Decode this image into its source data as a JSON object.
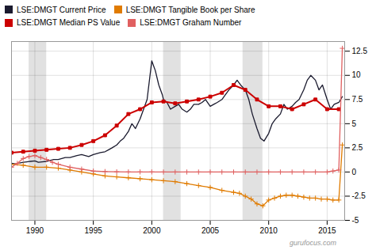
{
  "chart_data": {
    "type": "line",
    "xlim": [
      1988.0,
      2016.5
    ],
    "ylim": [
      -5,
      13.5
    ],
    "xticks": [
      1990,
      1995,
      2000,
      2005,
      2010,
      2015
    ],
    "yticks": [
      -5,
      -2.5,
      0,
      2.5,
      5,
      7.5,
      10,
      12.5
    ],
    "grid": true,
    "legend": "upper left",
    "caption": "gurufocus.com",
    "recession_bands": [
      [
        1989.5,
        1991.0
      ],
      [
        2001.0,
        2002.5
      ],
      [
        2007.8,
        2009.5
      ]
    ],
    "series": [
      {
        "name": "LSE:DMGT Current Price",
        "color": "#1a1a2e",
        "x": [
          1988.0,
          1988.3,
          1988.6,
          1989.0,
          1989.3,
          1989.6,
          1990.0,
          1990.3,
          1990.6,
          1991.0,
          1991.3,
          1991.6,
          1992.0,
          1992.3,
          1992.6,
          1993.0,
          1993.3,
          1993.6,
          1994.0,
          1994.3,
          1994.6,
          1995.0,
          1995.3,
          1995.6,
          1996.0,
          1996.3,
          1996.6,
          1997.0,
          1997.3,
          1997.6,
          1998.0,
          1998.3,
          1998.6,
          1999.0,
          1999.3,
          1999.6,
          2000.0,
          2000.3,
          2000.6,
          2000.9,
          2001.0,
          2001.3,
          2001.6,
          2002.0,
          2002.3,
          2002.6,
          2003.0,
          2003.3,
          2003.6,
          2004.0,
          2004.3,
          2004.6,
          2005.0,
          2005.3,
          2005.6,
          2006.0,
          2006.3,
          2006.6,
          2007.0,
          2007.3,
          2007.6,
          2008.0,
          2008.3,
          2008.6,
          2009.0,
          2009.3,
          2009.6,
          2010.0,
          2010.3,
          2010.6,
          2011.0,
          2011.3,
          2011.6,
          2012.0,
          2012.3,
          2012.6,
          2013.0,
          2013.3,
          2013.6,
          2014.0,
          2014.3,
          2014.6,
          2015.0,
          2015.3,
          2015.6,
          2016.0,
          2016.3
        ],
        "values": [
          0.9,
          0.85,
          0.9,
          1.0,
          1.05,
          1.1,
          1.15,
          1.0,
          1.05,
          1.1,
          1.2,
          1.3,
          1.3,
          1.4,
          1.5,
          1.5,
          1.6,
          1.7,
          1.8,
          1.7,
          1.6,
          1.8,
          1.9,
          2.0,
          2.1,
          2.3,
          2.5,
          2.8,
          3.2,
          3.5,
          4.2,
          5.0,
          4.5,
          5.5,
          6.5,
          7.5,
          11.5,
          10.5,
          9.0,
          8.0,
          7.5,
          7.2,
          6.5,
          6.8,
          7.0,
          6.5,
          6.2,
          6.5,
          7.0,
          7.0,
          7.2,
          7.5,
          6.8,
          7.0,
          7.2,
          7.5,
          8.0,
          8.5,
          9.0,
          9.5,
          9.0,
          8.5,
          7.5,
          6.0,
          4.5,
          3.5,
          3.2,
          4.0,
          5.0,
          5.5,
          6.0,
          7.0,
          6.5,
          6.8,
          7.2,
          7.5,
          8.5,
          9.5,
          10.0,
          9.5,
          8.5,
          9.0,
          7.5,
          6.5,
          7.0,
          7.2,
          7.8
        ]
      },
      {
        "name": "LSE:DMGT Tangible Book per Share",
        "color": "#e07b00",
        "marker": "plus",
        "x": [
          1988.0,
          1989.0,
          1990.0,
          1991.0,
          1992.0,
          1993.0,
          1994.0,
          1995.0,
          1996.0,
          1997.0,
          1998.0,
          1999.0,
          2000.0,
          2001.0,
          2002.0,
          2003.0,
          2004.0,
          2005.0,
          2006.0,
          2007.0,
          2007.5,
          2008.0,
          2008.5,
          2009.0,
          2009.5,
          2010.0,
          2010.5,
          2011.0,
          2011.5,
          2012.0,
          2012.5,
          2013.0,
          2013.5,
          2014.0,
          2014.5,
          2015.0,
          2015.5,
          2016.0,
          2016.3
        ],
        "values": [
          0.8,
          0.7,
          0.5,
          0.5,
          0.4,
          0.2,
          0.0,
          -0.2,
          -0.4,
          -0.5,
          -0.6,
          -0.7,
          -0.8,
          -0.9,
          -1.0,
          -1.2,
          -1.4,
          -1.6,
          -1.9,
          -2.1,
          -2.2,
          -2.5,
          -2.8,
          -3.3,
          -3.5,
          -2.9,
          -2.7,
          -2.5,
          -2.4,
          -2.4,
          -2.5,
          -2.6,
          -2.7,
          -2.7,
          -2.8,
          -2.8,
          -2.9,
          -2.9,
          2.8
        ]
      },
      {
        "name": "LSE:DMGT Median PS Value",
        "color": "#cc0000",
        "marker": "square",
        "x": [
          1988.0,
          1989.0,
          1990.0,
          1991.0,
          1992.0,
          1993.0,
          1994.0,
          1995.0,
          1996.0,
          1997.0,
          1998.0,
          1999.0,
          2000.0,
          2001.0,
          2002.0,
          2003.0,
          2004.0,
          2005.0,
          2006.0,
          2007.0,
          2008.0,
          2009.0,
          2010.0,
          2011.0,
          2012.0,
          2013.0,
          2014.0,
          2015.0,
          2016.0
        ],
        "values": [
          2.0,
          2.1,
          2.2,
          2.3,
          2.4,
          2.5,
          2.8,
          3.2,
          3.8,
          4.8,
          6.0,
          6.5,
          7.2,
          7.3,
          7.1,
          7.3,
          7.5,
          7.8,
          8.2,
          9.0,
          8.5,
          7.5,
          6.8,
          6.8,
          6.5,
          7.0,
          7.5,
          6.5,
          6.5
        ]
      },
      {
        "name": "LSE:DMGT Graham Number",
        "color": "#e06060",
        "marker": "plus",
        "x": [
          1988.0,
          1988.5,
          1989.0,
          1989.5,
          1990.0,
          1990.5,
          1991.0,
          1991.5,
          1992.0,
          1993.0,
          1994.0,
          1995.0,
          1996.0,
          1997.0,
          1998.0,
          1999.0,
          2000.0,
          2001.0,
          2002.0,
          2003.0,
          2004.0,
          2005.0,
          2006.0,
          2007.0,
          2008.0,
          2009.0,
          2010.0,
          2011.0,
          2012.0,
          2013.0,
          2014.0,
          2015.0,
          2015.5,
          2016.0,
          2016.3
        ],
        "values": [
          0.5,
          0.9,
          1.4,
          1.6,
          1.7,
          1.5,
          1.3,
          1.0,
          0.8,
          0.5,
          0.3,
          0.1,
          0.05,
          0.02,
          0.01,
          0.01,
          0.01,
          0.0,
          0.0,
          0.0,
          0.0,
          0.0,
          0.0,
          0.0,
          0.0,
          0.0,
          0.0,
          0.0,
          0.0,
          0.0,
          0.0,
          0.0,
          0.1,
          0.2,
          12.8
        ]
      }
    ]
  }
}
